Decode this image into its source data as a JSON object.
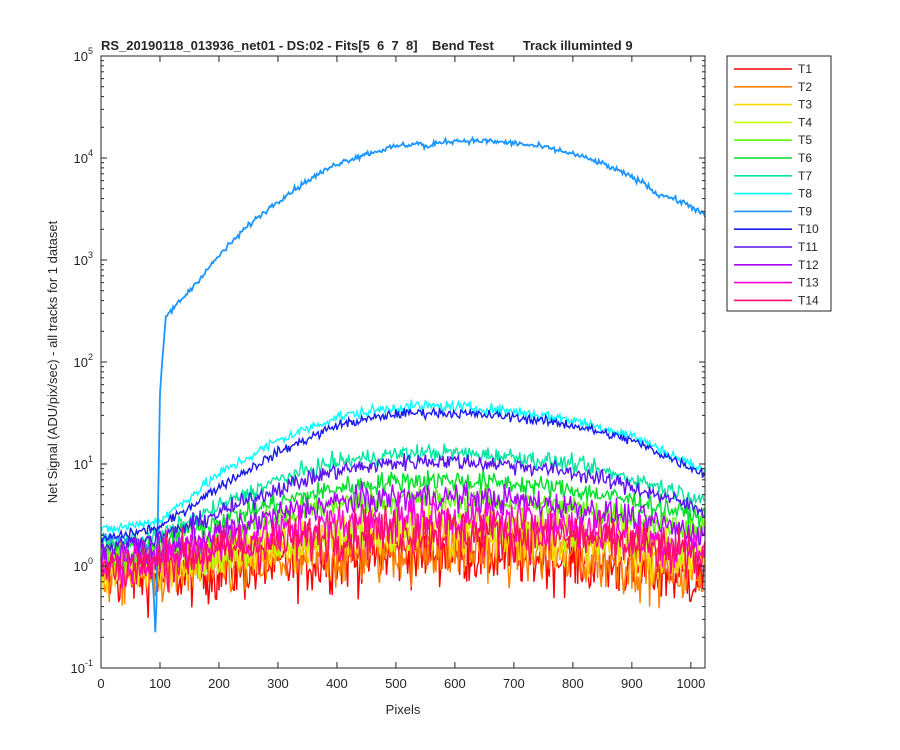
{
  "chart_data": {
    "type": "line",
    "title": "RS_20190118_013936_net01 - DS:02 - Fits[5  6  7  8]    Bend Test        Track illuminted 9",
    "xlabel": "Pixels",
    "ylabel": "Net Signal (ADU/pix/sec) - all tracks for 1 dataset",
    "xlim": [
      0,
      1024
    ],
    "ylim": [
      0.1,
      100000
    ],
    "yscale": "log",
    "xticks": [
      "0",
      "100",
      "200",
      "300",
      "400",
      "500",
      "600",
      "700",
      "800",
      "900",
      "1000"
    ],
    "yticks": [
      {
        "base": "10",
        "exp": "-1"
      },
      {
        "base": "10",
        "exp": "0"
      },
      {
        "base": "10",
        "exp": "1"
      },
      {
        "base": "10",
        "exp": "2"
      },
      {
        "base": "10",
        "exp": "3"
      },
      {
        "base": "10",
        "exp": "4"
      },
      {
        "base": "10",
        "exp": "5"
      }
    ],
    "legend_position": "outside-right",
    "series": [
      {
        "name": "T1",
        "color": "#ff0000",
        "noise": 0.45,
        "x": [
          0,
          100,
          200,
          300,
          400,
          500,
          550,
          600,
          700,
          800,
          900,
          1024
        ],
        "y": [
          0.8,
          0.8,
          0.9,
          1.0,
          1.15,
          1.3,
          1.35,
          1.35,
          1.3,
          1.15,
          0.95,
          0.75
        ]
      },
      {
        "name": "T2",
        "color": "#ff7f00",
        "noise": 0.45,
        "x": [
          0,
          100,
          200,
          300,
          400,
          500,
          550,
          600,
          700,
          800,
          900,
          1024
        ],
        "y": [
          0.85,
          0.85,
          0.95,
          1.1,
          1.25,
          1.4,
          1.45,
          1.45,
          1.4,
          1.25,
          1.05,
          0.8
        ]
      },
      {
        "name": "T3",
        "color": "#ffd700",
        "noise": 0.35,
        "x": [
          0,
          100,
          200,
          300,
          400,
          500,
          550,
          600,
          700,
          800,
          900,
          1024
        ],
        "y": [
          0.9,
          1.0,
          1.2,
          1.5,
          1.8,
          2.0,
          2.05,
          2.0,
          1.9,
          1.7,
          1.4,
          1.05
        ]
      },
      {
        "name": "T4",
        "color": "#bfff00",
        "noise": 0.3,
        "x": [
          0,
          100,
          200,
          300,
          400,
          500,
          550,
          600,
          700,
          800,
          900,
          1024
        ],
        "y": [
          1.0,
          1.1,
          1.4,
          1.8,
          2.2,
          2.5,
          2.6,
          2.55,
          2.4,
          2.1,
          1.8,
          1.3
        ]
      },
      {
        "name": "T5",
        "color": "#5cff00",
        "noise": 0.2,
        "x": [
          0,
          100,
          200,
          300,
          400,
          500,
          550,
          600,
          700,
          800,
          900,
          1024
        ],
        "y": [
          1.2,
          1.4,
          2.0,
          3.0,
          4.0,
          4.4,
          4.5,
          4.4,
          4.2,
          3.6,
          3.0,
          2.2
        ]
      },
      {
        "name": "T6",
        "color": "#00e02a",
        "noise": 0.15,
        "x": [
          0,
          100,
          200,
          300,
          400,
          500,
          550,
          600,
          700,
          800,
          900,
          1024
        ],
        "y": [
          1.4,
          1.7,
          2.8,
          4.2,
          5.8,
          6.8,
          7.0,
          6.9,
          6.4,
          5.6,
          4.4,
          3.0
        ]
      },
      {
        "name": "T7",
        "color": "#00e6a0",
        "noise": 0.12,
        "x": [
          0,
          100,
          200,
          300,
          400,
          500,
          550,
          600,
          700,
          800,
          900,
          1024
        ],
        "y": [
          1.6,
          2.0,
          3.8,
          7.0,
          10.5,
          12.5,
          13.0,
          12.8,
          11.8,
          10.0,
          7.2,
          4.5
        ]
      },
      {
        "name": "T8",
        "color": "#00ffff",
        "noise": 0.08,
        "x": [
          0,
          100,
          200,
          300,
          400,
          500,
          550,
          600,
          700,
          800,
          900,
          1024
        ],
        "y": [
          2.2,
          2.8,
          8.0,
          17.0,
          29.0,
          36.0,
          37.0,
          36.5,
          33.0,
          27.0,
          19.0,
          8.5
        ]
      },
      {
        "name": "T9",
        "color": "#1e96ff",
        "noise": 0.04,
        "x": [
          0,
          50,
          85,
          93,
          100,
          110,
          150,
          200,
          250,
          300,
          350,
          400,
          450,
          500,
          540,
          555,
          570,
          600,
          650,
          700,
          750,
          800,
          850,
          900,
          925,
          940,
          960,
          1000,
          1024
        ],
        "y": [
          2.0,
          1.8,
          1.5,
          0.18,
          50,
          280,
          500,
          1100,
          2200,
          3800,
          6000,
          8800,
          11000,
          13000,
          14000,
          12500,
          14200,
          14800,
          14700,
          14000,
          12800,
          11000,
          8800,
          6500,
          5500,
          4500,
          4200,
          3400,
          2700
        ]
      },
      {
        "name": "T10",
        "color": "#1a1aee",
        "noise": 0.07,
        "x": [
          0,
          100,
          200,
          300,
          400,
          500,
          550,
          600,
          700,
          800,
          900,
          1024
        ],
        "y": [
          1.8,
          2.4,
          6.0,
          13.0,
          24.0,
          31.0,
          32.0,
          31.5,
          29.0,
          24.0,
          17.0,
          8.0
        ]
      },
      {
        "name": "T11",
        "color": "#5a14f0",
        "noise": 0.12,
        "x": [
          0,
          100,
          200,
          300,
          400,
          500,
          550,
          600,
          700,
          800,
          900,
          1024
        ],
        "y": [
          1.5,
          1.9,
          3.3,
          5.8,
          8.6,
          10.3,
          10.8,
          10.6,
          9.8,
          8.3,
          6.0,
          3.5
        ]
      },
      {
        "name": "T12",
        "color": "#aa00ff",
        "noise": 0.2,
        "x": [
          0,
          100,
          200,
          300,
          400,
          500,
          550,
          600,
          700,
          800,
          900,
          1024
        ],
        "y": [
          1.2,
          1.4,
          2.1,
          3.2,
          4.2,
          4.7,
          4.8,
          4.7,
          4.4,
          3.8,
          3.0,
          2.0
        ]
      },
      {
        "name": "T13",
        "color": "#ff00dd",
        "noise": 0.3,
        "x": [
          0,
          100,
          200,
          300,
          400,
          500,
          550,
          600,
          700,
          800,
          900,
          1024
        ],
        "y": [
          1.05,
          1.2,
          1.6,
          2.1,
          2.6,
          2.9,
          3.0,
          2.95,
          2.8,
          2.45,
          2.0,
          1.4
        ]
      },
      {
        "name": "T14",
        "color": "#ff0f6a",
        "noise": 0.35,
        "x": [
          0,
          100,
          200,
          300,
          400,
          500,
          550,
          600,
          700,
          800,
          900,
          1024
        ],
        "y": [
          0.95,
          1.1,
          1.4,
          1.7,
          2.0,
          2.2,
          2.25,
          2.2,
          2.1,
          1.9,
          1.6,
          1.15
        ]
      }
    ]
  }
}
